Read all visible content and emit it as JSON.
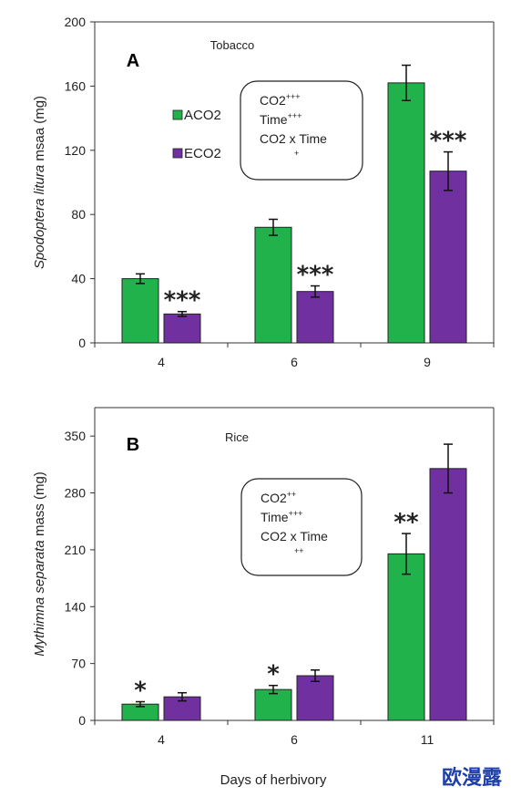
{
  "chart_data": [
    {
      "panel": "A",
      "type": "bar",
      "title": "Tobacco",
      "ylabel_italic": "Spodoptera litura",
      "ylabel_rest": " msaa (mg)",
      "categories": [
        "4",
        "6",
        "9"
      ],
      "ylim": [
        0,
        200
      ],
      "yticks": [
        0,
        40,
        80,
        120,
        160,
        200
      ],
      "series": [
        {
          "name": "ACO2",
          "color": "#22b24c",
          "values": [
            40,
            72,
            162
          ],
          "errors": [
            3,
            5,
            11
          ]
        },
        {
          "name": "ECO2",
          "color": "#7030a0",
          "values": [
            18,
            32,
            107
          ],
          "errors": [
            1.5,
            3.5,
            12
          ]
        }
      ],
      "significance": [
        {
          "category": 0,
          "series": 1,
          "label": "***"
        },
        {
          "category": 1,
          "series": 1,
          "label": "***"
        },
        {
          "category": 2,
          "series": 1,
          "label": "***"
        }
      ],
      "stats_box": [
        {
          "text": "CO2",
          "sup": "+++",
          "sub": ""
        },
        {
          "text": "Time",
          "sup": "+++",
          "sub": ""
        },
        {
          "text": "CO2 x Time",
          "sup": "",
          "sub": "+"
        }
      ],
      "legend": {
        "show": true
      }
    },
    {
      "panel": "B",
      "type": "bar",
      "title": "Rice",
      "ylabel_italic": "Mythimna separata",
      "ylabel_rest": " mass (mg)",
      "categories": [
        "4",
        "6",
        "11"
      ],
      "ylim": [
        0,
        385
      ],
      "yticks": [
        0,
        70,
        140,
        210,
        280,
        350
      ],
      "series": [
        {
          "name": "ACO2",
          "color": "#22b24c",
          "values": [
            20,
            38,
            205
          ],
          "errors": [
            3,
            5,
            25
          ]
        },
        {
          "name": "ECO2",
          "color": "#7030a0",
          "values": [
            29,
            55,
            310
          ],
          "errors": [
            5,
            7,
            30
          ]
        }
      ],
      "significance": [
        {
          "category": 0,
          "series": 0,
          "label": "*"
        },
        {
          "category": 1,
          "series": 0,
          "label": "*"
        },
        {
          "category": 2,
          "series": 0,
          "label": "**"
        }
      ],
      "stats_box": [
        {
          "text": "CO2",
          "sup": "++",
          "sub": ""
        },
        {
          "text": "Time",
          "sup": "+++",
          "sub": ""
        },
        {
          "text": "CO2 x Time",
          "sup": "",
          "sub": "++"
        }
      ],
      "legend": {
        "show": false
      }
    }
  ],
  "xlabel": "Days of herbivory",
  "watermark": "欧漫露"
}
